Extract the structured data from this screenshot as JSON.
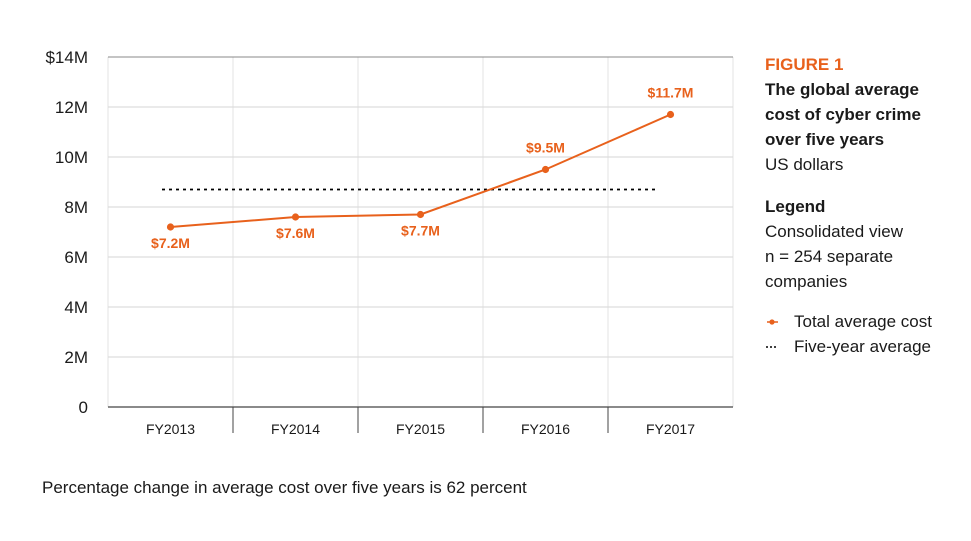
{
  "chart_data": {
    "type": "line",
    "categories": [
      "FY2013",
      "FY2014",
      "FY2015",
      "FY2016",
      "FY2017"
    ],
    "series": [
      {
        "name": "Total average cost",
        "values": [
          7.2,
          7.6,
          7.7,
          9.5,
          11.7
        ],
        "data_labels": [
          "$7.2M",
          "$7.6M",
          "$7.7M",
          "$9.5M",
          "$11.7M"
        ],
        "color": "#e8611c",
        "style": "solid-with-markers"
      }
    ],
    "reference_line": {
      "name": "Five-year average",
      "value": 8.7,
      "style": "dotted",
      "color": "#000000"
    },
    "y_ticks": [
      {
        "value": 0,
        "label": "0"
      },
      {
        "value": 2,
        "label": "2M"
      },
      {
        "value": 4,
        "label": "4M"
      },
      {
        "value": 6,
        "label": "6M"
      },
      {
        "value": 8,
        "label": "8M"
      },
      {
        "value": 10,
        "label": "10M"
      },
      {
        "value": 12,
        "label": "12M"
      },
      {
        "value": 14,
        "label": "$14M"
      }
    ],
    "ylim": [
      0,
      14
    ],
    "grid": "horizontal and vertical",
    "legend_position": "right"
  },
  "figure": {
    "label": "FIGURE 1",
    "title_lines": [
      "The global average",
      "cost of cyber crime",
      "over five years"
    ],
    "subtitle": "US dollars"
  },
  "legend": {
    "heading": "Legend",
    "description_lines": [
      "Consolidated view",
      "n = 254 separate",
      "companies"
    ],
    "items": [
      {
        "label": "Total average cost",
        "swatch": "orange-line-with-dot"
      },
      {
        "label": "Five-year average",
        "swatch": "black-dotted-line"
      }
    ]
  },
  "footnote": "Percentage change in average cost over five years is 62 percent"
}
